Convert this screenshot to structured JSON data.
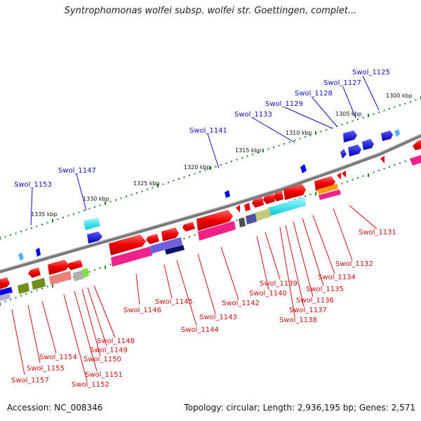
{
  "title": "Syntrophomonas wolfei subsp. wolfei str. Goettingen, complet...",
  "footer": {
    "accession": "Accession: NC_008346",
    "summary": "Topology: circular; Length: 2,936,195 bp; Genes: 2,571"
  },
  "scale_labels": [
    "1300 kbp",
    "1305 kbp",
    "1310 kbp",
    "1315 kbp",
    "1320 kbp",
    "1325 kbp",
    "1330 kbp",
    "1335 kbp"
  ],
  "genes_top": [
    "Swol_1125",
    "Swol_1127",
    "Swol_1128",
    "Swol_1129",
    "Swol_1133",
    "Swol_1141",
    "Swol_1147",
    "Swol_1153"
  ],
  "genes_bottom": [
    "Swol_1131",
    "Swol_1132",
    "Swol_1134",
    "Swol_1135",
    "Swol_1136",
    "Swol_1137",
    "Swol_1138",
    "Swol_1139",
    "Swol_1140",
    "Swol_1142",
    "Swol_1143",
    "Swol_1144",
    "Swol_1145",
    "Swol_1146",
    "Swol_1148",
    "Swol_1149",
    "Swol_1150",
    "Swol_1151",
    "Swol_1152",
    "Swol_1154",
    "Swol_1155",
    "Swol_1157"
  ],
  "colors": {
    "backbone": "#7a7a7a",
    "tick": "#1e8c1e",
    "top_label": "#1010c8",
    "bottom_label": "#d01010"
  }
}
